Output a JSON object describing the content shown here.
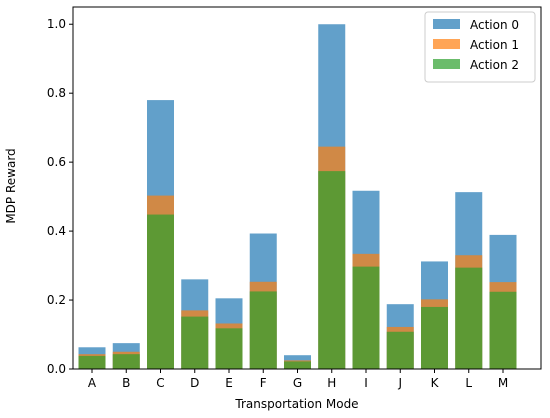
{
  "chart_data": {
    "type": "bar",
    "stacked": "overlay",
    "xlabel": "Transportation Mode",
    "ylabel": "MDP Reward",
    "ylim": [
      0,
      1.05
    ],
    "yticks": [
      "0.0",
      "0.2",
      "0.4",
      "0.6",
      "0.8",
      "1.0"
    ],
    "ytick_values": [
      0,
      0.2,
      0.4,
      0.6,
      0.8,
      1.0
    ],
    "categories": [
      "A",
      "B",
      "C",
      "D",
      "E",
      "F",
      "G",
      "H",
      "I",
      "J",
      "K",
      "L",
      "M"
    ],
    "series": [
      {
        "name": "Action 0",
        "color": "#1f77b4",
        "values": [
          0.063,
          0.075,
          0.78,
          0.26,
          0.205,
          0.393,
          0.04,
          1.0,
          0.517,
          0.188,
          0.312,
          0.513,
          0.389
        ]
      },
      {
        "name": "Action 1",
        "color": "#ff7f0e",
        "values": [
          0.043,
          0.05,
          0.503,
          0.17,
          0.132,
          0.253,
          0.025,
          0.645,
          0.334,
          0.122,
          0.202,
          0.33,
          0.252
        ]
      },
      {
        "name": "Action 2",
        "color": "#2ca02c",
        "values": [
          0.038,
          0.043,
          0.448,
          0.152,
          0.118,
          0.225,
          0.022,
          0.574,
          0.297,
          0.108,
          0.18,
          0.294,
          0.224
        ]
      }
    ],
    "legend": "top-right",
    "grid": false
  }
}
